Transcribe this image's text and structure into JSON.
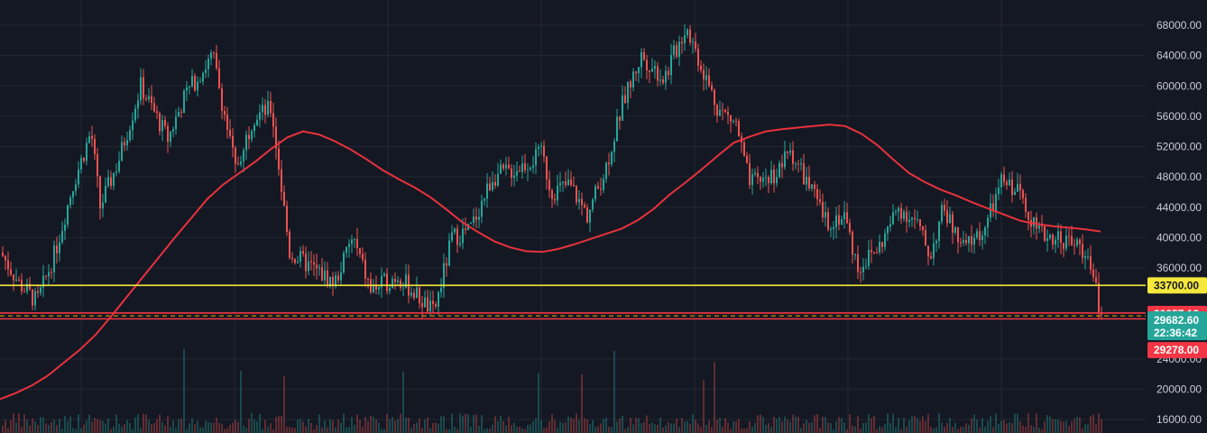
{
  "chart_data": {
    "type": "candlestick",
    "y_axis": {
      "ticks": [
        "68000.00",
        "64000.00",
        "60000.00",
        "56000.00",
        "52000.00",
        "48000.00",
        "44000.00",
        "40000.00",
        "36000.00",
        "24000.00",
        "20000.00",
        "16000.00"
      ],
      "tick_values": [
        68000,
        64000,
        60000,
        56000,
        52000,
        48000,
        44000,
        40000,
        36000,
        24000,
        20000,
        16000
      ],
      "range": [
        14000,
        70800
      ],
      "position": "right"
    },
    "grid": true,
    "price_lines": [
      {
        "name": "horizontal-line",
        "value": 33700,
        "label": "33700.00",
        "color": "#f5e73c",
        "style": "solid"
      },
      {
        "name": "horizontal-line",
        "value": 30057.18,
        "label": "30057.18",
        "color": "#f23645",
        "style": "solid"
      },
      {
        "name": "horizontal-line",
        "value": 29278.0,
        "label": "29278.00",
        "color": "#f23645",
        "style": "solid"
      },
      {
        "name": "last-price-line",
        "value": 29682.6,
        "label": "29682.60",
        "color": "#f7a600",
        "style": "dashed"
      }
    ],
    "last_price": {
      "value": 29682.6,
      "label": "29682.60",
      "countdown": "22:36:42",
      "color": "#26a69a"
    },
    "moving_average_values": [
      18700,
      19500,
      20500,
      21800,
      23500,
      25200,
      27200,
      29700,
      32300,
      34900,
      37500,
      40100,
      42600,
      45100,
      47000,
      48500,
      50000,
      51700,
      53200,
      54000,
      53600,
      52700,
      51600,
      50300,
      48900,
      47700,
      46600,
      45300,
      43700,
      42000,
      40700,
      39500,
      38700,
      38200,
      38100,
      38500,
      39100,
      39800,
      40500,
      41200,
      42300,
      43800,
      45700,
      47300,
      49000,
      50800,
      52500,
      53300,
      54000,
      54300,
      54500,
      54700,
      54900,
      54700,
      53700,
      52200,
      50300,
      48500,
      47300,
      46300,
      45500,
      44600,
      43800,
      43000,
      42200,
      41800,
      41500,
      41300,
      41100,
      40800
    ],
    "colors": {
      "up": "#26a69a",
      "down": "#ef5350",
      "ma": "#e8323d",
      "background": "#141823",
      "grid": "#222733",
      "axis_text": "#c9ccd4"
    }
  }
}
